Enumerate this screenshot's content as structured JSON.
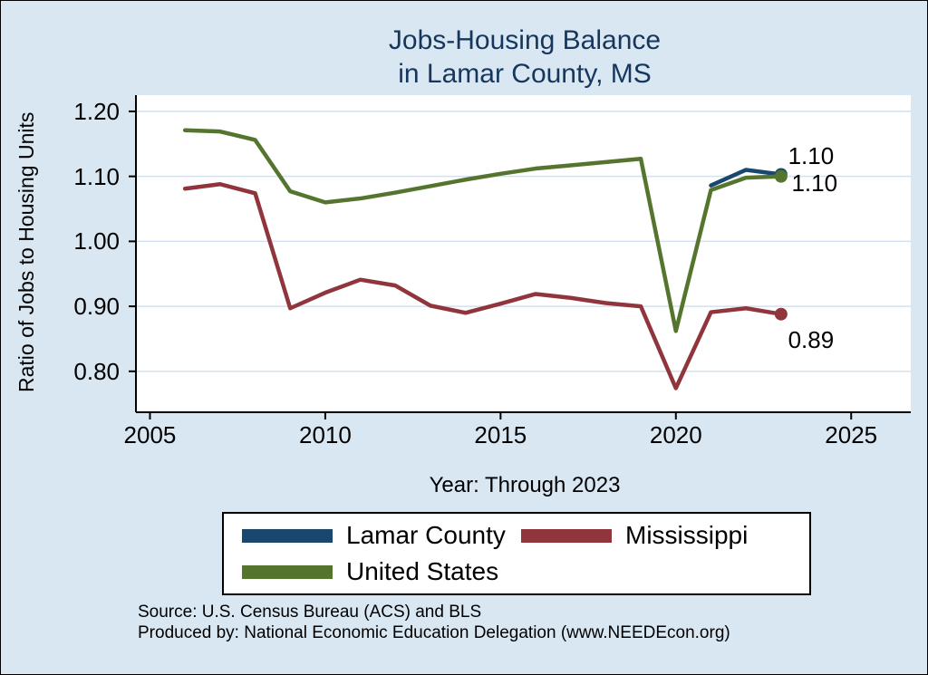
{
  "title": {
    "line1": "Jobs-Housing Balance",
    "line2": "in Lamar County, MS"
  },
  "axes": {
    "y_label": "Ratio of Jobs to Housing Units",
    "x_label": "Year: Through 2023"
  },
  "legend": {
    "items": [
      {
        "label": "Lamar County",
        "color": "#1a476f"
      },
      {
        "label": "Mississippi",
        "color": "#90353b"
      },
      {
        "label": "United States",
        "color": "#55752f"
      }
    ]
  },
  "footer": {
    "source": "Source: U.S. Census Bureau (ACS) and BLS",
    "produced": "Produced by: National Economic Education Delegation (www.NEEDEcon.org)"
  },
  "colors": {
    "background": "#d9e7f3",
    "title": "#17365d",
    "axis": "#000000",
    "gridline": "#d3e1ee",
    "lamar_county": "#1a476f",
    "mississippi": "#90353b",
    "united_states": "#55752f"
  },
  "chart_data": {
    "type": "line",
    "title": "Jobs-Housing Balance in Lamar County, MS",
    "xlabel": "Year: Through 2023",
    "ylabel": "Ratio of Jobs to Housing Units",
    "xlim": [
      2004.6,
      2026.7
    ],
    "ylim": [
      0.737,
      1.225
    ],
    "x_ticks": [
      2005,
      2010,
      2015,
      2020,
      2025
    ],
    "y_ticks": [
      0.8,
      0.9,
      1.0,
      1.1,
      1.2
    ],
    "grid": true,
    "legend_position": "bottom",
    "series": [
      {
        "name": "Lamar County",
        "color": "#1a476f",
        "x": [
          2021,
          2022,
          2023
        ],
        "values": [
          1.086,
          1.11,
          1.103
        ]
      },
      {
        "name": "United States",
        "color": "#55752f",
        "x": [
          2006,
          2007,
          2008,
          2009,
          2010,
          2011,
          2012,
          2013,
          2014,
          2015,
          2016,
          2017,
          2018,
          2019,
          2020,
          2021,
          2022,
          2023
        ],
        "values": [
          1.171,
          1.169,
          1.156,
          1.077,
          1.06,
          1.066,
          1.075,
          1.085,
          1.095,
          1.104,
          1.112,
          1.117,
          1.122,
          1.127,
          0.862,
          1.079,
          1.098,
          1.1
        ]
      },
      {
        "name": "Mississippi",
        "color": "#90353b",
        "x": [
          2006,
          2007,
          2008,
          2009,
          2010,
          2011,
          2012,
          2013,
          2014,
          2015,
          2016,
          2017,
          2018,
          2019,
          2020,
          2021,
          2022,
          2023
        ],
        "values": [
          1.081,
          1.088,
          1.074,
          0.897,
          0.921,
          0.941,
          0.932,
          0.901,
          0.89,
          0.904,
          0.919,
          0.913,
          0.905,
          0.9,
          0.774,
          0.891,
          0.897,
          0.888
        ]
      }
    ],
    "end_labels": [
      {
        "text": "1.10",
        "series": "Lamar County",
        "anchor_x": 2023.2,
        "anchor_y": 1.132
      },
      {
        "text": "1.10",
        "series": "United States",
        "anchor_x": 2023.3,
        "anchor_y": 1.09
      },
      {
        "text": "0.89",
        "series": "Mississippi",
        "anchor_x": 2023.2,
        "anchor_y": 0.849
      }
    ]
  }
}
